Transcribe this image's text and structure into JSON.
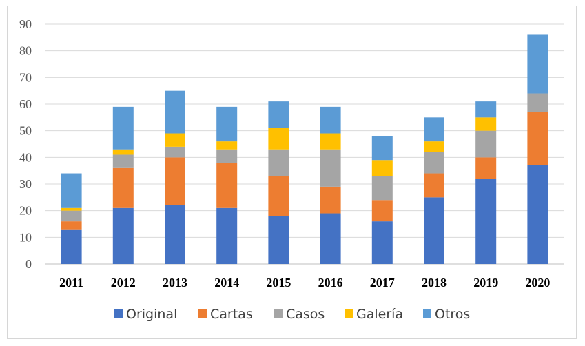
{
  "chart_data": {
    "type": "bar",
    "stacked": true,
    "categories": [
      "2011",
      "2012",
      "2013",
      "2014",
      "2015",
      "2016",
      "2017",
      "2018",
      "2019",
      "2020"
    ],
    "series": [
      {
        "name": "Original",
        "color": "#4472C4",
        "values": [
          13,
          21,
          22,
          21,
          18,
          19,
          16,
          25,
          32,
          37
        ]
      },
      {
        "name": "Cartas",
        "color": "#ED7D31",
        "values": [
          3,
          15,
          18,
          17,
          15,
          10,
          8,
          9,
          8,
          20
        ]
      },
      {
        "name": "Casos",
        "color": "#A5A5A5",
        "values": [
          4,
          5,
          4,
          5,
          10,
          14,
          9,
          8,
          10,
          7
        ]
      },
      {
        "name": "Galería",
        "color": "#FFC000",
        "values": [
          1,
          2,
          5,
          3,
          8,
          6,
          6,
          4,
          5,
          0
        ]
      },
      {
        "name": "Otros",
        "color": "#5B9BD5",
        "values": [
          13,
          16,
          16,
          13,
          10,
          10,
          9,
          9,
          6,
          22
        ]
      }
    ],
    "yticks": [
      "0",
      "10",
      "20",
      "30",
      "40",
      "50",
      "60",
      "70",
      "80",
      "90"
    ],
    "ylim": [
      0,
      90
    ],
    "grid": true,
    "legend_position": "bottom"
  }
}
